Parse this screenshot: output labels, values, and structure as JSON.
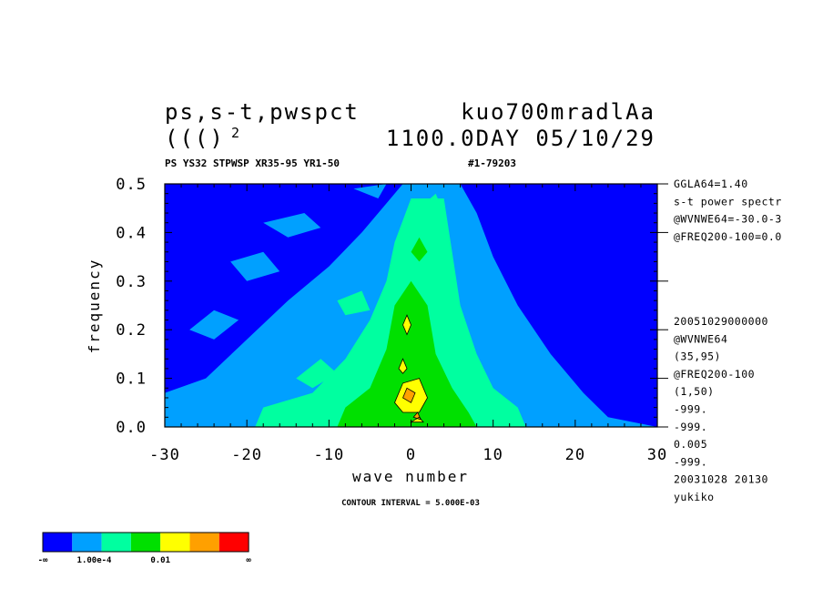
{
  "header": {
    "title_left": "ps,s-t,pwspct",
    "title_right": "kuo700mradlAa",
    "subtitle_left_base": "((()",
    "subtitle_left_sup": "2",
    "subtitle_right": "1100.0DAY 05/10/29",
    "meta_left": "PS YS32 STPWSP XR35-95 YR1-50",
    "meta_right": "#1-79203"
  },
  "side_info": {
    "top": [
      "GGLA64=1.40",
      "s-t power spectr",
      "@WVNWE64=-30.0-3",
      "@FREQ200-100=0.0"
    ],
    "bottom": [
      "20051029000000",
      "@WVNWE64",
      "(35,95)",
      "@FREQ200-100",
      "(1,50)",
      "-999.",
      "-999.",
      "0.005",
      "-999.",
      "20031028  20130",
      "yukiko"
    ]
  },
  "footer": {
    "contour_interval": "CONTOUR INTERVAL = 5.000E-03"
  },
  "colorbar": {
    "colors": [
      "#0000ff",
      "#00a0ff",
      "#00ffa0",
      "#00e000",
      "#ffff00",
      "#ffa000",
      "#ff0000"
    ],
    "labels": [
      "-∞",
      "1.00e-4",
      "0.01",
      "∞"
    ]
  },
  "chart_data": {
    "type": "heatmap",
    "xlabel": "wave number",
    "ylabel": "frequency",
    "xlim": [
      -30,
      30
    ],
    "ylim": [
      0.0,
      0.5
    ],
    "xticks": [
      "-30",
      "-20",
      "-10",
      "0",
      "10",
      "20",
      "30"
    ],
    "yticks": [
      "0.0",
      "0.1",
      "0.2",
      "0.3",
      "0.4",
      "0.5"
    ],
    "background_level": "below 1.00e-4 (blue)",
    "regions": [
      {
        "level": "light-blue",
        "color": "#00a0ff",
        "polygon": [
          [
            -30,
            0.0
          ],
          [
            -30,
            0.07
          ],
          [
            -25,
            0.1
          ],
          [
            -20,
            0.18
          ],
          [
            -15,
            0.26
          ],
          [
            -10,
            0.33
          ],
          [
            -6,
            0.4
          ],
          [
            -3,
            0.46
          ],
          [
            -1,
            0.5
          ],
          [
            6,
            0.5
          ],
          [
            8,
            0.44
          ],
          [
            10,
            0.35
          ],
          [
            13,
            0.25
          ],
          [
            17,
            0.15
          ],
          [
            21,
            0.07
          ],
          [
            24,
            0.02
          ],
          [
            30,
            0.0
          ]
        ]
      },
      {
        "level": "light-blue",
        "color": "#00a0ff",
        "polygon": [
          [
            -27,
            0.2
          ],
          [
            -24,
            0.24
          ],
          [
            -21,
            0.22
          ],
          [
            -24,
            0.18
          ]
        ]
      },
      {
        "level": "light-blue",
        "color": "#00a0ff",
        "polygon": [
          [
            -22,
            0.34
          ],
          [
            -18,
            0.36
          ],
          [
            -16,
            0.32
          ],
          [
            -20,
            0.3
          ]
        ]
      },
      {
        "level": "light-blue",
        "color": "#00a0ff",
        "polygon": [
          [
            -18,
            0.42
          ],
          [
            -13,
            0.44
          ],
          [
            -11,
            0.41
          ],
          [
            -15,
            0.39
          ]
        ]
      },
      {
        "level": "light-blue",
        "color": "#00a0ff",
        "polygon": [
          [
            -7,
            0.49
          ],
          [
            -3,
            0.5
          ],
          [
            -4,
            0.47
          ]
        ]
      },
      {
        "level": "cyan-green",
        "color": "#00ffa0",
        "polygon": [
          [
            -19,
            0.0
          ],
          [
            -18,
            0.04
          ],
          [
            -12,
            0.07
          ],
          [
            -8,
            0.14
          ],
          [
            -5,
            0.22
          ],
          [
            -3,
            0.3
          ],
          [
            -2,
            0.38
          ],
          [
            0,
            0.47
          ],
          [
            4,
            0.47
          ],
          [
            5,
            0.36
          ],
          [
            6,
            0.25
          ],
          [
            8,
            0.15
          ],
          [
            10,
            0.08
          ],
          [
            13,
            0.04
          ],
          [
            14,
            0.0
          ]
        ]
      },
      {
        "level": "cyan-green",
        "color": "#00ffa0",
        "polygon": [
          [
            -14,
            0.1
          ],
          [
            -11,
            0.14
          ],
          [
            -9,
            0.11
          ],
          [
            -12,
            0.08
          ]
        ]
      },
      {
        "level": "cyan-green",
        "color": "#00ffa0",
        "polygon": [
          [
            -9,
            0.26
          ],
          [
            -6,
            0.28
          ],
          [
            -5,
            0.24
          ],
          [
            -8,
            0.23
          ]
        ]
      },
      {
        "level": "cyan-green",
        "color": "#00ffa0",
        "polygon": [
          [
            1,
            0.45
          ],
          [
            3,
            0.48
          ],
          [
            4,
            0.44
          ]
        ]
      },
      {
        "level": "green",
        "color": "#00e000",
        "polygon": [
          [
            -9,
            0.0
          ],
          [
            -8,
            0.04
          ],
          [
            -5,
            0.08
          ],
          [
            -3,
            0.16
          ],
          [
            -2,
            0.25
          ],
          [
            0,
            0.3
          ],
          [
            2,
            0.25
          ],
          [
            3,
            0.15
          ],
          [
            5,
            0.08
          ],
          [
            7,
            0.03
          ],
          [
            8,
            0.0
          ]
        ]
      },
      {
        "level": "green",
        "color": "#00e000",
        "polygon": [
          [
            0,
            0.36
          ],
          [
            1,
            0.39
          ],
          [
            2,
            0.36
          ],
          [
            1,
            0.34
          ]
        ]
      },
      {
        "level": "yellow",
        "color": "#ffff00",
        "polygon": [
          [
            -2,
            0.05
          ],
          [
            -1,
            0.09
          ],
          [
            1,
            0.1
          ],
          [
            2,
            0.06
          ],
          [
            1,
            0.03
          ],
          [
            -1,
            0.03
          ]
        ]
      },
      {
        "level": "yellow",
        "color": "#ffff00",
        "polygon": [
          [
            -1,
            0.21
          ],
          [
            -0.5,
            0.23
          ],
          [
            0,
            0.21
          ],
          [
            -0.5,
            0.19
          ]
        ]
      },
      {
        "level": "yellow",
        "color": "#ffff00",
        "polygon": [
          [
            -1.5,
            0.12
          ],
          [
            -1,
            0.14
          ],
          [
            -0.5,
            0.12
          ],
          [
            -1,
            0.11
          ]
        ]
      },
      {
        "level": "yellow",
        "color": "#ffff00",
        "polygon": [
          [
            0,
            0.01
          ],
          [
            1,
            0.02
          ],
          [
            1.5,
            0.01
          ]
        ]
      },
      {
        "level": "orange",
        "color": "#ffa000",
        "polygon": [
          [
            -1,
            0.06
          ],
          [
            -0.5,
            0.08
          ],
          [
            0.5,
            0.07
          ],
          [
            0,
            0.05
          ]
        ]
      },
      {
        "level": "orange",
        "color": "#ffa000",
        "polygon": [
          [
            0.3,
            0.02
          ],
          [
            0.8,
            0.03
          ],
          [
            1.2,
            0.015
          ]
        ]
      }
    ]
  }
}
